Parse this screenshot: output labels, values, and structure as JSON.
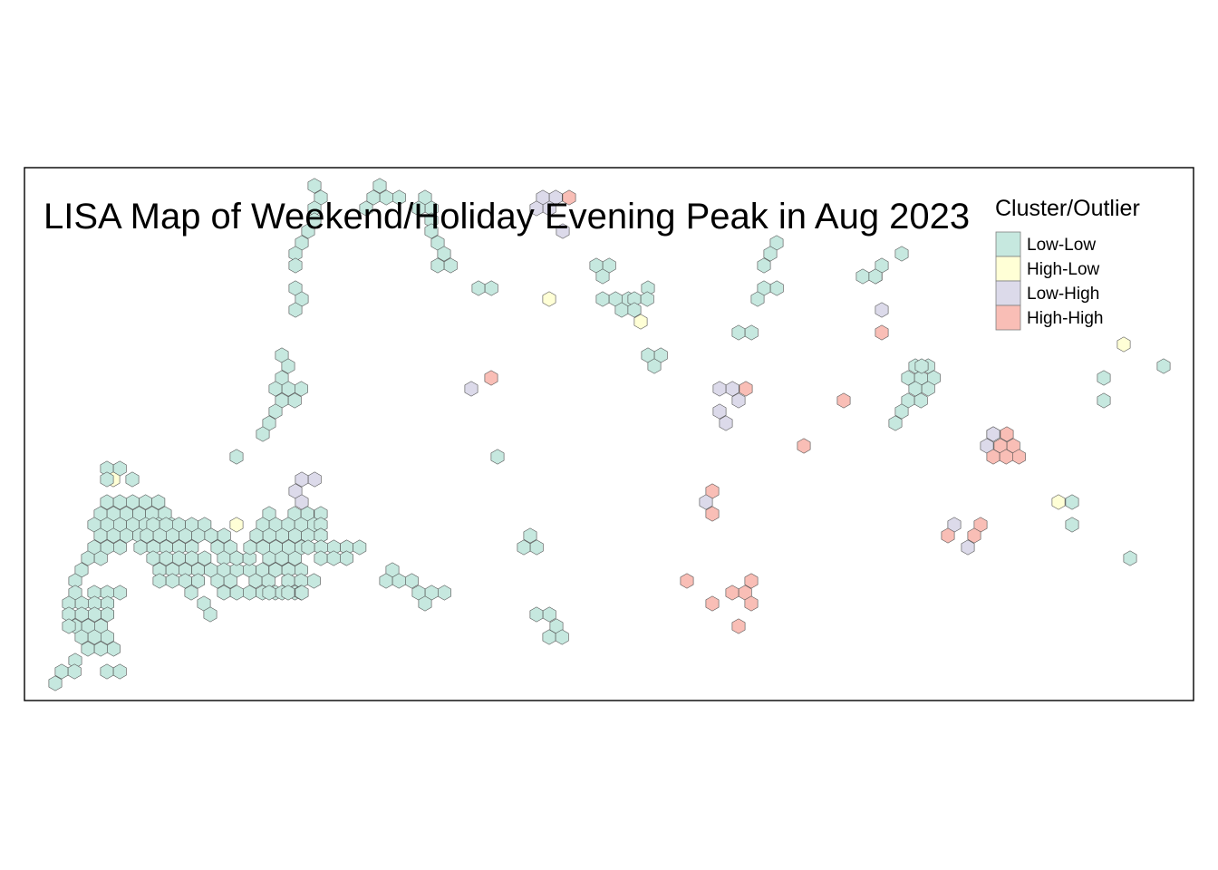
{
  "map": {
    "title": "LISA Map of Weekend/Holiday Evening Peak in Aug 2023"
  },
  "legend": {
    "title": "Cluster/Outlier",
    "items": [
      {
        "label": "Low-Low",
        "color": "#c6e8df"
      },
      {
        "label": "High-Low",
        "color": "#ffffd6"
      },
      {
        "label": "Low-High",
        "color": "#dcdaea"
      },
      {
        "label": "High-High",
        "color": "#f9beb6"
      }
    ]
  },
  "colors": {
    "hex_stroke": "#4d4d4d",
    "frame": "#000000"
  }
}
